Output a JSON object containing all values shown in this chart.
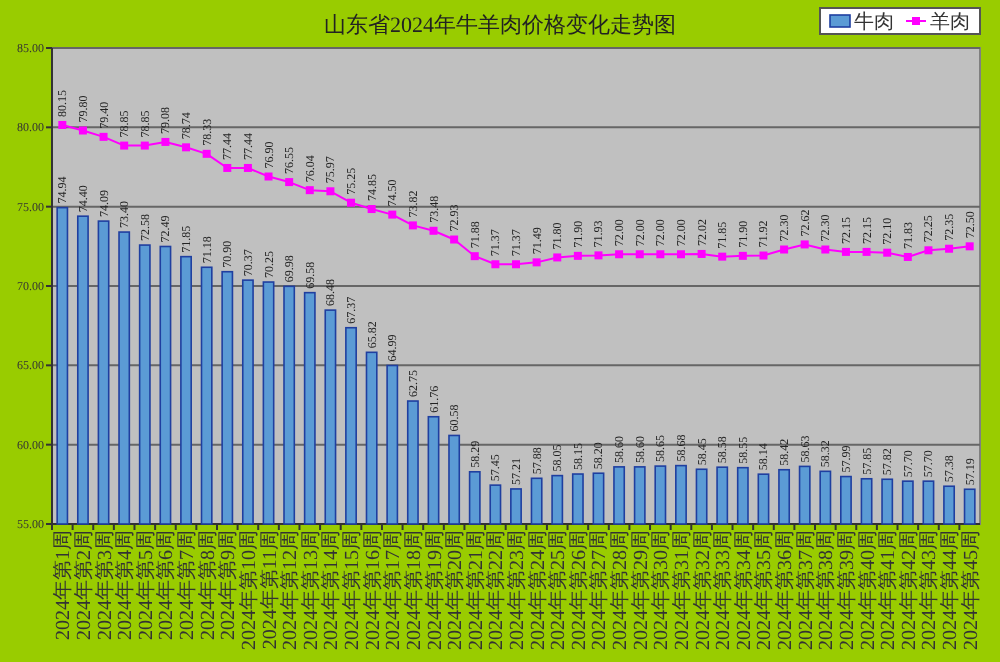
{
  "chart_data": {
    "type": "bar",
    "title": "山东省2024年牛羊肉价格变化走势图",
    "categories": [
      "2024年第1周",
      "2024年第2周",
      "2024年第3周",
      "2024年第4周",
      "2024年第5周",
      "2024年第6周",
      "2024年第7周",
      "2024年第8周",
      "2024年第9周",
      "2024年第10周",
      "2024年第11周",
      "2024年第12周",
      "2024年第13周",
      "2024年第14周",
      "2024年第15周",
      "2024年第16周",
      "2024年第17周",
      "2024年第18周",
      "2024年第19周",
      "2024年第20周",
      "2024年第21周",
      "2024年第22周",
      "2024年第23周",
      "2024年第24周",
      "2024年第25周",
      "2024年第26周",
      "2024年第27周",
      "2024年第28周",
      "2024年第29周",
      "2024年第30周",
      "2024年第31周",
      "2024年第32周",
      "2024年第33周",
      "2024年第34周",
      "2024年第35周",
      "2024年第36周",
      "2024年第37周",
      "2024年第38周",
      "2024年第39周",
      "2024年第40周",
      "2024年第41周",
      "2024年第42周",
      "2024年第43周",
      "2024年第44周",
      "2024年第45周"
    ],
    "series": [
      {
        "name": "牛肉",
        "color": "#5b9bd5",
        "values": [
          74.94,
          74.4,
          74.09,
          73.4,
          72.58,
          72.49,
          71.85,
          71.18,
          70.9,
          70.37,
          70.25,
          69.98,
          69.58,
          68.48,
          67.37,
          65.82,
          64.99,
          62.75,
          61.76,
          60.58,
          58.29,
          57.45,
          57.21,
          57.88,
          58.05,
          58.15,
          58.2,
          58.6,
          58.6,
          58.65,
          58.68,
          58.45,
          58.58,
          58.55,
          58.14,
          58.42,
          58.63,
          58.32,
          57.99,
          57.85,
          57.82,
          57.7,
          57.7,
          57.38,
          57.19
        ],
        "value_labels": [
          "74.94",
          "74.40",
          "74.09",
          "73.40",
          "72.58",
          "72.49",
          "71.85",
          "71.18",
          "70.90",
          "70.37",
          "70.25",
          "69.98",
          "69.58",
          "68.48",
          "67.37",
          "65.82",
          "64.99",
          "62.75",
          "61.76",
          "60.58",
          "58.29",
          "57.45",
          "57.21",
          "57.88",
          "58.05",
          "58.15",
          "58.20",
          "58.60",
          "58.60",
          "58.65",
          "58.68",
          "58.45",
          "58.58",
          "58.55",
          "58.14",
          "58.42",
          "58.63",
          "58.32",
          "57.99",
          "57.85",
          "57.82",
          "57.70",
          "57.70",
          "57.38",
          "57.19"
        ]
      },
      {
        "name": "羊肉",
        "type": "line",
        "color": "#ff00ff",
        "marker": "square",
        "values": [
          80.15,
          79.8,
          79.4,
          78.85,
          78.85,
          79.08,
          78.74,
          78.33,
          77.44,
          77.44,
          76.9,
          76.55,
          76.04,
          75.97,
          75.25,
          74.85,
          74.5,
          73.82,
          73.48,
          72.93,
          71.88,
          71.37,
          71.37,
          71.49,
          71.8,
          71.9,
          71.93,
          72.0,
          72.0,
          72.0,
          72.0,
          72.02,
          71.85,
          71.9,
          71.92,
          72.3,
          72.62,
          72.3,
          72.15,
          72.15,
          72.1,
          71.83,
          72.25,
          72.35,
          72.5
        ],
        "value_labels": [
          "80.15",
          "79.80",
          "79.40",
          "78.85",
          "78.85",
          "79.08",
          "78.74",
          "78.33",
          "77.44",
          "77.44",
          "76.90",
          "76.55",
          "76.04",
          "75.97",
          "75.25",
          "74.85",
          "74.50",
          "73.82",
          "73.48",
          "72.93",
          "71.88",
          "71.37",
          "71.37",
          "71.49",
          "71.80",
          "71.90",
          "71.93",
          "72.00",
          "72.00",
          "72.00",
          "72.00",
          "72.02",
          "71.85",
          "71.90",
          "71.92",
          "72.30",
          "72.62",
          "72.30",
          "72.15",
          "72.15",
          "72.10",
          "71.83",
          "72.25",
          "72.35",
          "72.50"
        ]
      }
    ],
    "ylim": [
      55,
      85
    ],
    "yticks": [
      {
        "value": 55,
        "label": "55.00"
      },
      {
        "value": 60,
        "label": "60.00"
      },
      {
        "value": 65,
        "label": "65.00"
      },
      {
        "value": 70,
        "label": "70.00"
      },
      {
        "value": 75,
        "label": "75.00"
      },
      {
        "value": 80,
        "label": "80.00"
      },
      {
        "value": 85,
        "label": "85.00"
      }
    ],
    "grid": "y",
    "legend": "top right"
  }
}
